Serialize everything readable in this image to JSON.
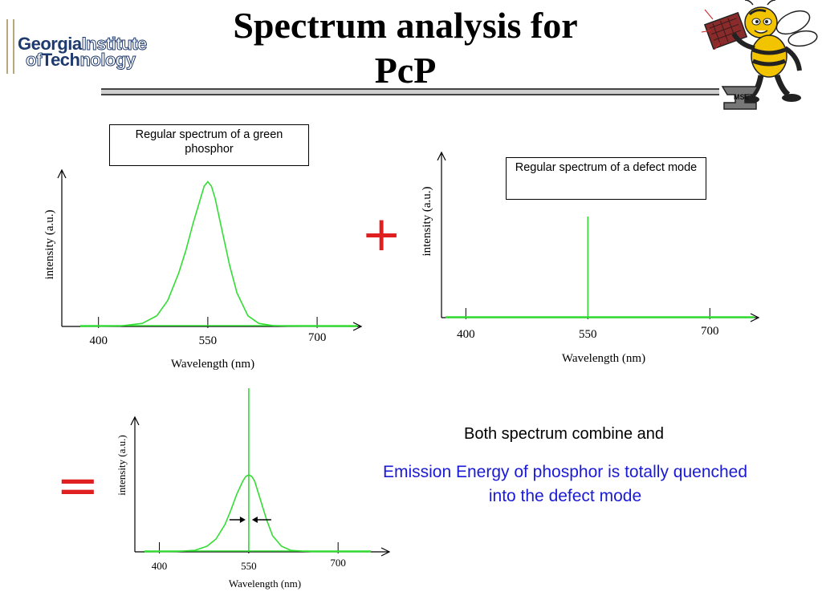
{
  "slide": {
    "title_line1": "Spectrum analysis for",
    "title_line2": "PcP",
    "logo": {
      "part1": "Georgia",
      "part2": "Institute",
      "part3": "of",
      "part4": "Tech",
      "part5": "nology"
    },
    "mascot_label": "MSE",
    "plus_symbol": "+",
    "equals_symbol": "=",
    "statement": "Both spectrum combine and",
    "conclusion": "Emission Energy of phosphor is totally quenched into the defect mode"
  },
  "colors": {
    "curve": "#33dd33",
    "operator": "#e02020",
    "conclusion": "#1a1ad6",
    "axis": "#000000"
  },
  "chart_data": [
    {
      "type": "line",
      "annotation": "Regular spectrum of a green phosphor",
      "xlabel": "Wavelength (nm)",
      "ylabel": "intensity (a.u.)",
      "xticks": [
        400,
        550,
        700
      ],
      "xlim": [
        350,
        760
      ],
      "ylim": [
        0,
        1
      ],
      "series": [
        {
          "x": [
            375,
            430,
            460,
            480,
            495,
            510,
            520,
            530,
            540,
            545,
            550,
            555,
            560,
            570,
            580,
            590,
            605,
            620,
            640,
            660,
            700,
            755
          ],
          "y": [
            0,
            0.003,
            0.02,
            0.07,
            0.17,
            0.35,
            0.5,
            0.68,
            0.84,
            0.92,
            0.95,
            0.92,
            0.84,
            0.62,
            0.4,
            0.22,
            0.07,
            0.02,
            0.005,
            0.002,
            0.001,
            0
          ]
        }
      ]
    },
    {
      "type": "line",
      "annotation": "Regular spectrum of a defect mode",
      "xlabel": "Wavelength (nm)",
      "ylabel": "intensity (a.u.)",
      "xticks": [
        400,
        550,
        700
      ],
      "xlim": [
        350,
        760
      ],
      "ylim": [
        0,
        1
      ],
      "series": [
        {
          "x": [
            375,
            550,
            550,
            550,
            755
          ],
          "y": [
            0,
            0,
            0.7,
            0,
            0
          ]
        }
      ]
    },
    {
      "type": "line",
      "xlabel": "Wavelength (nm)",
      "ylabel": "intensity (a.u.)",
      "xticks": [
        400,
        550,
        700
      ],
      "xlim": [
        350,
        760
      ],
      "ylim": [
        0,
        1
      ],
      "series": [
        {
          "x": [
            375,
            430,
            460,
            480,
            495,
            510,
            520,
            530,
            540,
            545,
            550,
            555,
            560,
            570,
            580,
            590,
            605,
            620,
            640,
            660,
            700,
            755
          ],
          "y": [
            0,
            0.002,
            0.01,
            0.035,
            0.08,
            0.17,
            0.26,
            0.36,
            0.44,
            0.47,
            0.48,
            0.47,
            0.44,
            0.32,
            0.2,
            0.1,
            0.035,
            0.01,
            0.004,
            0.001,
            0.001,
            0
          ]
        },
        {
          "x": [
            550,
            550
          ],
          "y": [
            0,
            1.02
          ]
        }
      ],
      "annotations": [
        "narrowing arrows pointing to 550 nm"
      ]
    }
  ]
}
